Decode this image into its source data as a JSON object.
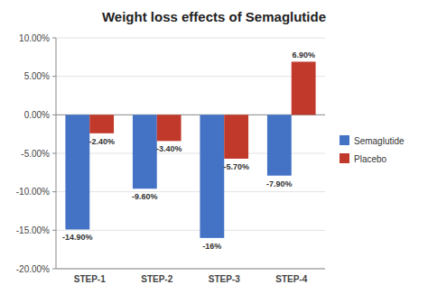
{
  "chart_data": {
    "type": "bar",
    "title": "Weight loss effects of Semaglutide",
    "categories": [
      "STEP-1",
      "STEP-2",
      "STEP-3",
      "STEP-4"
    ],
    "series": [
      {
        "name": "Semaglutide",
        "color": "#4472C4",
        "values": [
          -14.9,
          -9.6,
          -16.0,
          -7.9
        ],
        "value_labels": [
          "-14.90%",
          "-9.60%",
          "-16%",
          "-7.90%"
        ]
      },
      {
        "name": "Placebo",
        "color": "#C0392B",
        "values": [
          -2.4,
          -3.4,
          -5.7,
          6.9
        ],
        "value_labels": [
          "-2.40%",
          "-3.40%",
          "-5.70%",
          "6.90%"
        ]
      }
    ],
    "ylim": [
      -20,
      10
    ],
    "yticks": [
      {
        "value": -20,
        "label": "-20.00%"
      },
      {
        "value": -15,
        "label": "-15.00%"
      },
      {
        "value": -10,
        "label": "-10.00%"
      },
      {
        "value": -5,
        "label": "-5.00%"
      },
      {
        "value": 0,
        "label": "0.00%"
      },
      {
        "value": 5,
        "label": "5.00%"
      },
      {
        "value": 10,
        "label": "10.00%"
      }
    ],
    "grid": true,
    "legend": "right",
    "data_labels": true
  }
}
